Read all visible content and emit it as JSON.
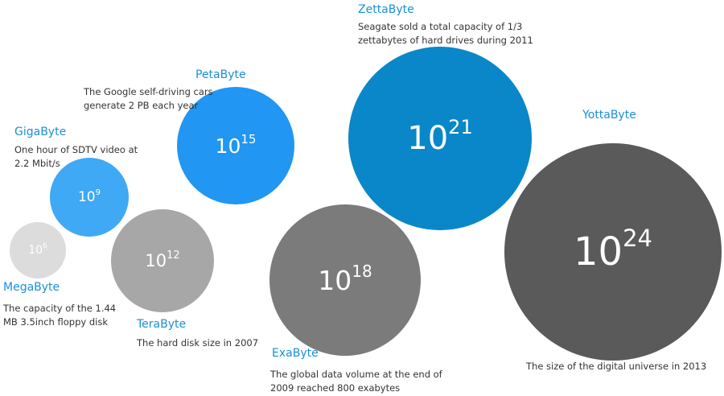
{
  "units": [
    {
      "name": "MegaByte",
      "base": "10",
      "exponent": "6",
      "description": "The capacity of the 1.44\nMB 3.5inch floppy disk"
    },
    {
      "name": "GigaByte",
      "base": "10",
      "exponent": "9",
      "description": "One hour of SDTV video at\n2.2 Mbit/s"
    },
    {
      "name": "TeraByte",
      "base": "10",
      "exponent": "12",
      "description": "The hard disk size in 2007"
    },
    {
      "name": "PetaByte",
      "base": "10",
      "exponent": "15",
      "description": "The Google self-driving cars\ngenerate 2 PB each year"
    },
    {
      "name": "ExaByte",
      "base": "10",
      "exponent": "18",
      "description": "The global data volume at the end of\n2009 reached 800 exabytes"
    },
    {
      "name": "ZettaByte",
      "base": "10",
      "exponent": "21",
      "description": "Seagate sold a total capacity of 1/3\nzettabytes of hard drives during 2011"
    },
    {
      "name": "YottaByte",
      "base": "10",
      "exponent": "24",
      "description": "The size of the digital universe in 2013"
    }
  ],
  "colors": {
    "title": "#1a8fd8",
    "text": "#333333",
    "mega": "#dcdcdc",
    "giga": "#3fa9f5",
    "tera": "#a7a7a7",
    "peta": "#2196f3",
    "exa": "#7b7b7b",
    "zetta": "#0a87c8",
    "yotta": "#5a5a5a"
  }
}
